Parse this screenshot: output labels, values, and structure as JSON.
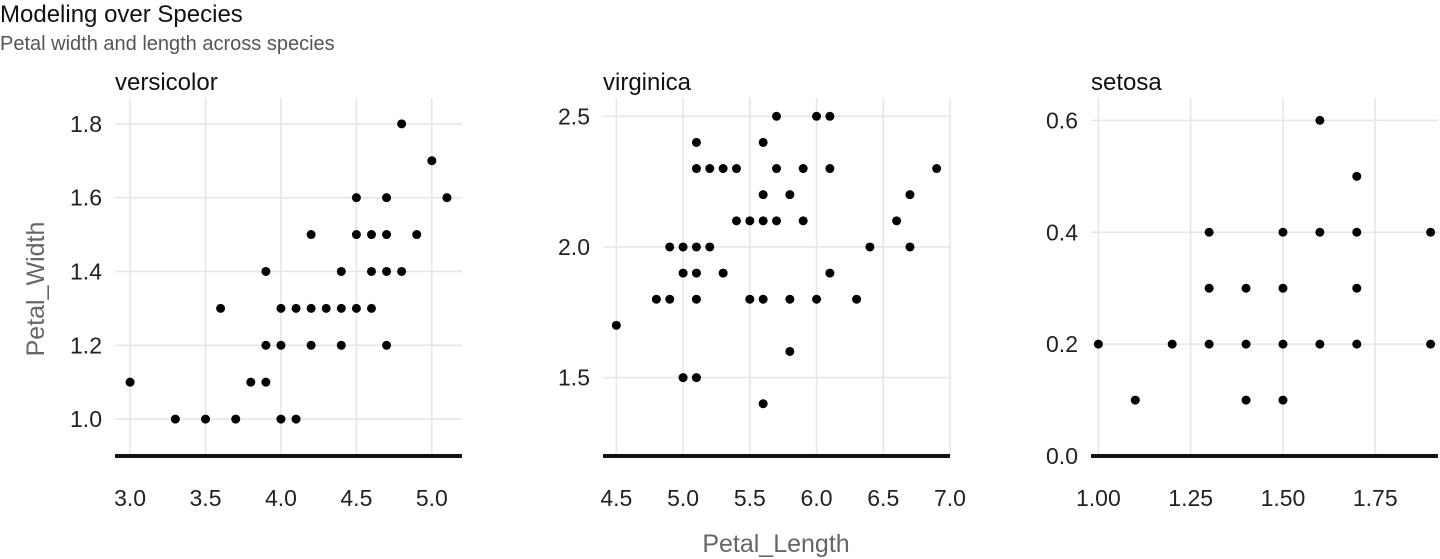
{
  "chart_data": {
    "type": "scatter",
    "title": "Modeling over Species",
    "subtitle": "Petal width and length across species",
    "xlabel": "Petal_Length",
    "ylabel": "Petal_Width",
    "grid": true,
    "facets": [
      {
        "name": "versicolor",
        "xlim": [
          2.9,
          5.2
        ],
        "ylim": [
          0.9,
          1.87
        ],
        "x_ticks": [
          3.0,
          3.5,
          4.0,
          4.5,
          5.0
        ],
        "x_tick_labels": [
          "3.0",
          "3.5",
          "4.0",
          "4.5",
          "5.0"
        ],
        "y_ticks": [
          1.0,
          1.2,
          1.4,
          1.6,
          1.8
        ],
        "y_tick_labels": [
          "1.0",
          "1.2",
          "1.4",
          "1.6",
          "1.8"
        ],
        "points": [
          [
            3.0,
            1.1
          ],
          [
            3.3,
            1.0
          ],
          [
            3.5,
            1.0
          ],
          [
            3.7,
            1.0
          ],
          [
            3.6,
            1.3
          ],
          [
            3.8,
            1.1
          ],
          [
            3.9,
            1.1
          ],
          [
            3.9,
            1.2
          ],
          [
            3.9,
            1.4
          ],
          [
            4.0,
            1.0
          ],
          [
            4.1,
            1.0
          ],
          [
            4.0,
            1.2
          ],
          [
            4.0,
            1.3
          ],
          [
            4.1,
            1.3
          ],
          [
            4.2,
            1.3
          ],
          [
            4.3,
            1.3
          ],
          [
            4.4,
            1.3
          ],
          [
            4.5,
            1.3
          ],
          [
            4.6,
            1.3
          ],
          [
            4.2,
            1.2
          ],
          [
            4.4,
            1.2
          ],
          [
            4.2,
            1.5
          ],
          [
            4.4,
            1.4
          ],
          [
            4.5,
            1.5
          ],
          [
            4.5,
            1.6
          ],
          [
            4.6,
            1.5
          ],
          [
            4.6,
            1.4
          ],
          [
            4.7,
            1.4
          ],
          [
            4.7,
            1.5
          ],
          [
            4.7,
            1.6
          ],
          [
            4.7,
            1.2
          ],
          [
            4.8,
            1.4
          ],
          [
            4.8,
            1.8
          ],
          [
            4.9,
            1.5
          ],
          [
            5.0,
            1.7
          ],
          [
            5.1,
            1.6
          ]
        ]
      },
      {
        "name": "virginica",
        "xlim": [
          4.4,
          7.0
        ],
        "ylim": [
          1.2,
          2.57
        ],
        "x_ticks": [
          4.5,
          5.0,
          5.5,
          6.0,
          6.5,
          7.0
        ],
        "x_tick_labels": [
          "4.5",
          "5.0",
          "5.5",
          "6.0",
          "6.5",
          "7.0"
        ],
        "y_ticks": [
          1.5,
          2.0,
          2.5
        ],
        "y_tick_labels": [
          "1.5",
          "2.0",
          "2.5"
        ],
        "points": [
          [
            4.5,
            1.7
          ],
          [
            4.8,
            1.8
          ],
          [
            4.9,
            1.8
          ],
          [
            4.9,
            2.0
          ],
          [
            5.0,
            2.0
          ],
          [
            5.1,
            2.0
          ],
          [
            5.2,
            2.0
          ],
          [
            5.0,
            1.9
          ],
          [
            5.1,
            1.9
          ],
          [
            5.0,
            1.5
          ],
          [
            5.1,
            1.5
          ],
          [
            5.1,
            1.8
          ],
          [
            5.1,
            2.3
          ],
          [
            5.2,
            2.3
          ],
          [
            5.3,
            2.3
          ],
          [
            5.4,
            2.3
          ],
          [
            5.1,
            2.4
          ],
          [
            5.3,
            1.9
          ],
          [
            5.4,
            2.1
          ],
          [
            5.5,
            2.1
          ],
          [
            5.6,
            2.1
          ],
          [
            5.7,
            2.1
          ],
          [
            5.5,
            1.8
          ],
          [
            5.6,
            1.8
          ],
          [
            5.6,
            2.2
          ],
          [
            5.6,
            2.4
          ],
          [
            5.6,
            1.4
          ],
          [
            5.7,
            2.3
          ],
          [
            5.7,
            2.5
          ],
          [
            5.8,
            2.2
          ],
          [
            5.8,
            1.8
          ],
          [
            5.8,
            1.6
          ],
          [
            5.9,
            2.3
          ],
          [
            5.9,
            2.1
          ],
          [
            6.0,
            2.5
          ],
          [
            6.1,
            2.5
          ],
          [
            6.0,
            1.8
          ],
          [
            6.1,
            2.3
          ],
          [
            6.1,
            1.9
          ],
          [
            6.3,
            1.8
          ],
          [
            6.4,
            2.0
          ],
          [
            6.6,
            2.1
          ],
          [
            6.7,
            2.2
          ],
          [
            6.7,
            2.0
          ],
          [
            6.9,
            2.3
          ]
        ]
      },
      {
        "name": "setosa",
        "xlim": [
          0.98,
          1.92
        ],
        "ylim": [
          0.0,
          0.64
        ],
        "x_ticks": [
          1.0,
          1.25,
          1.5,
          1.75
        ],
        "x_tick_labels": [
          "1.00",
          "1.25",
          "1.50",
          "1.75"
        ],
        "y_ticks": [
          0.0,
          0.2,
          0.4,
          0.6
        ],
        "y_tick_labels": [
          "0.0",
          "0.2",
          "0.4",
          "0.6"
        ],
        "points": [
          [
            1.0,
            0.2
          ],
          [
            1.1,
            0.1
          ],
          [
            1.2,
            0.2
          ],
          [
            1.3,
            0.2
          ],
          [
            1.3,
            0.3
          ],
          [
            1.3,
            0.4
          ],
          [
            1.4,
            0.1
          ],
          [
            1.4,
            0.2
          ],
          [
            1.4,
            0.3
          ],
          [
            1.5,
            0.1
          ],
          [
            1.5,
            0.2
          ],
          [
            1.5,
            0.3
          ],
          [
            1.5,
            0.4
          ],
          [
            1.6,
            0.2
          ],
          [
            1.6,
            0.4
          ],
          [
            1.6,
            0.6
          ],
          [
            1.7,
            0.2
          ],
          [
            1.7,
            0.3
          ],
          [
            1.7,
            0.4
          ],
          [
            1.7,
            0.5
          ],
          [
            1.9,
            0.2
          ],
          [
            1.9,
            0.4
          ]
        ]
      }
    ]
  }
}
